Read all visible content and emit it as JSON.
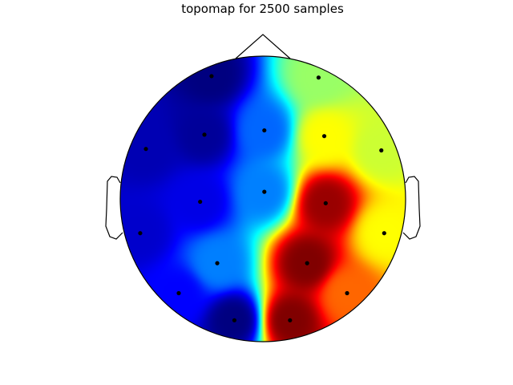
{
  "chart_data": {
    "type": "heatmap",
    "title": "topomap for 2500 samples",
    "colormap": "jet",
    "head_outline_color": "#000000",
    "electrode_color": "#000000",
    "electrodes": [
      {
        "x": -0.36,
        "y": 0.86,
        "value": -1.0
      },
      {
        "x": 0.39,
        "y": 0.85,
        "value": 0.05
      },
      {
        "x": -0.41,
        "y": 0.45,
        "value": -0.95
      },
      {
        "x": 0.01,
        "y": 0.48,
        "value": -0.55
      },
      {
        "x": 0.43,
        "y": 0.44,
        "value": 0.25
      },
      {
        "x": -0.82,
        "y": 0.35,
        "value": -0.9
      },
      {
        "x": 0.83,
        "y": 0.34,
        "value": 0.15
      },
      {
        "x": -0.44,
        "y": -0.02,
        "value": -0.8
      },
      {
        "x": 0.01,
        "y": 0.05,
        "value": -0.5
      },
      {
        "x": 0.44,
        "y": -0.03,
        "value": 0.95
      },
      {
        "x": -0.86,
        "y": -0.24,
        "value": -0.85
      },
      {
        "x": 0.85,
        "y": -0.24,
        "value": 0.25
      },
      {
        "x": -0.32,
        "y": -0.45,
        "value": -0.5
      },
      {
        "x": 0.31,
        "y": -0.45,
        "value": 1.0
      },
      {
        "x": -0.59,
        "y": -0.66,
        "value": -0.75
      },
      {
        "x": 0.59,
        "y": -0.66,
        "value": 0.55
      },
      {
        "x": -0.2,
        "y": -0.85,
        "value": -1.0
      },
      {
        "x": 0.19,
        "y": -0.85,
        "value": 1.0
      }
    ]
  }
}
